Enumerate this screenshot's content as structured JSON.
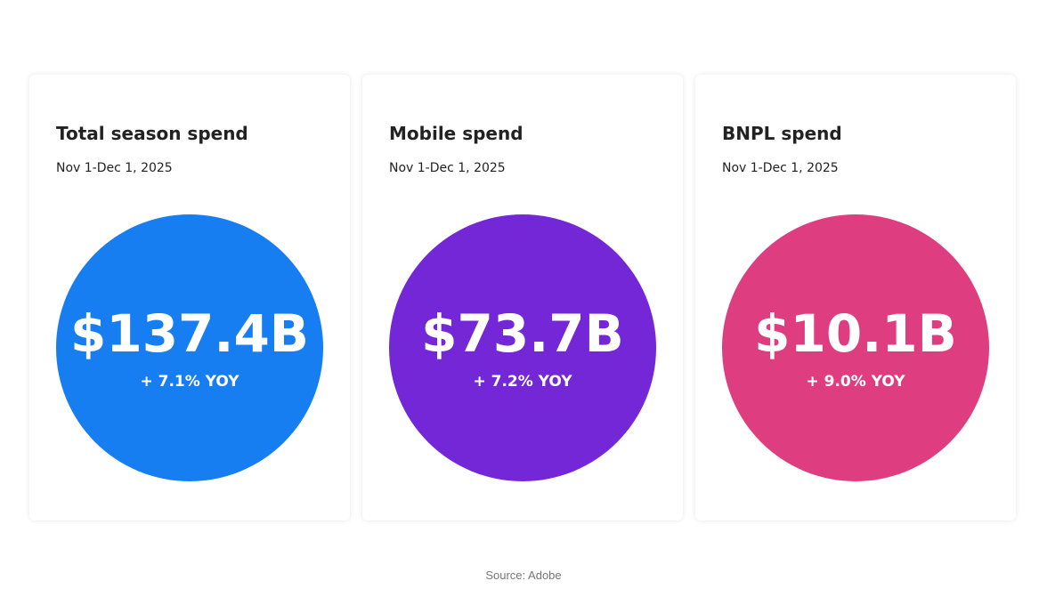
{
  "cards": [
    {
      "title": "Total season spend",
      "date": "Nov 1-Dec 1, 2025",
      "value": "$137.4B",
      "change": "+ 7.1% YOY",
      "color": "#177ef2"
    },
    {
      "title": "Mobile spend",
      "date": "Nov 1-Dec 1, 2025",
      "value": "$73.7B",
      "change": "+ 7.2% YOY",
      "color": "#7427d6"
    },
    {
      "title": "BNPL spend",
      "date": "Nov 1-Dec 1, 2025",
      "value": "$10.1B",
      "change": "+ 9.0% YOY",
      "color": "#de3e80"
    }
  ],
  "source": "Source: Adobe"
}
